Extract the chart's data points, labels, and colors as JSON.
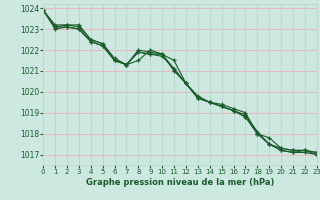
{
  "background_color": "#cce8e0",
  "grid_h_color": "#e8b8c0",
  "grid_v_color": "#b8d8d0",
  "line_color": "#1a5c2a",
  "title": "Graphe pression niveau de la mer (hPa)",
  "xlim": [
    0,
    23
  ],
  "ylim": [
    1016.5,
    1024.2
  ],
  "yticks": [
    1017,
    1018,
    1019,
    1020,
    1021,
    1022,
    1023,
    1024
  ],
  "xticks": [
    0,
    1,
    2,
    3,
    4,
    5,
    6,
    7,
    8,
    9,
    10,
    11,
    12,
    13,
    14,
    15,
    16,
    17,
    18,
    19,
    20,
    21,
    22,
    23
  ],
  "series": [
    [
      1023.9,
      1023.1,
      1023.2,
      1023.1,
      1022.5,
      1022.3,
      1021.5,
      1021.3,
      1021.9,
      1021.8,
      1021.8,
      1021.0,
      1020.4,
      1019.8,
      1019.5,
      1019.4,
      1019.2,
      1019.0,
      1018.0,
      1017.8,
      1017.3,
      1017.2,
      1017.2,
      1017.1
    ],
    [
      1023.9,
      1023.2,
      1023.2,
      1023.2,
      1022.5,
      1022.3,
      1021.6,
      1021.3,
      1021.9,
      1021.8,
      1021.7,
      1021.1,
      1020.4,
      1019.7,
      1019.5,
      1019.3,
      1019.1,
      1018.9,
      1018.1,
      1017.5,
      1017.3,
      1017.2,
      1017.2,
      1017.1
    ],
    [
      1023.9,
      1023.0,
      1023.1,
      1023.0,
      1022.4,
      1022.2,
      1021.5,
      1021.3,
      1022.0,
      1021.9,
      1021.8,
      1021.1,
      1020.4,
      1019.7,
      1019.5,
      1019.3,
      1019.1,
      1018.8,
      1018.0,
      1017.5,
      1017.2,
      1017.1,
      1017.2,
      1017.0
    ],
    [
      1023.9,
      1023.1,
      1023.1,
      1023.0,
      1022.4,
      1022.2,
      1021.5,
      1021.3,
      1021.5,
      1022.0,
      1021.8,
      1021.5,
      1020.4,
      1019.7,
      1019.5,
      1019.3,
      1019.1,
      1018.8,
      1018.0,
      1017.5,
      1017.2,
      1017.1,
      1017.1,
      1017.0
    ]
  ]
}
